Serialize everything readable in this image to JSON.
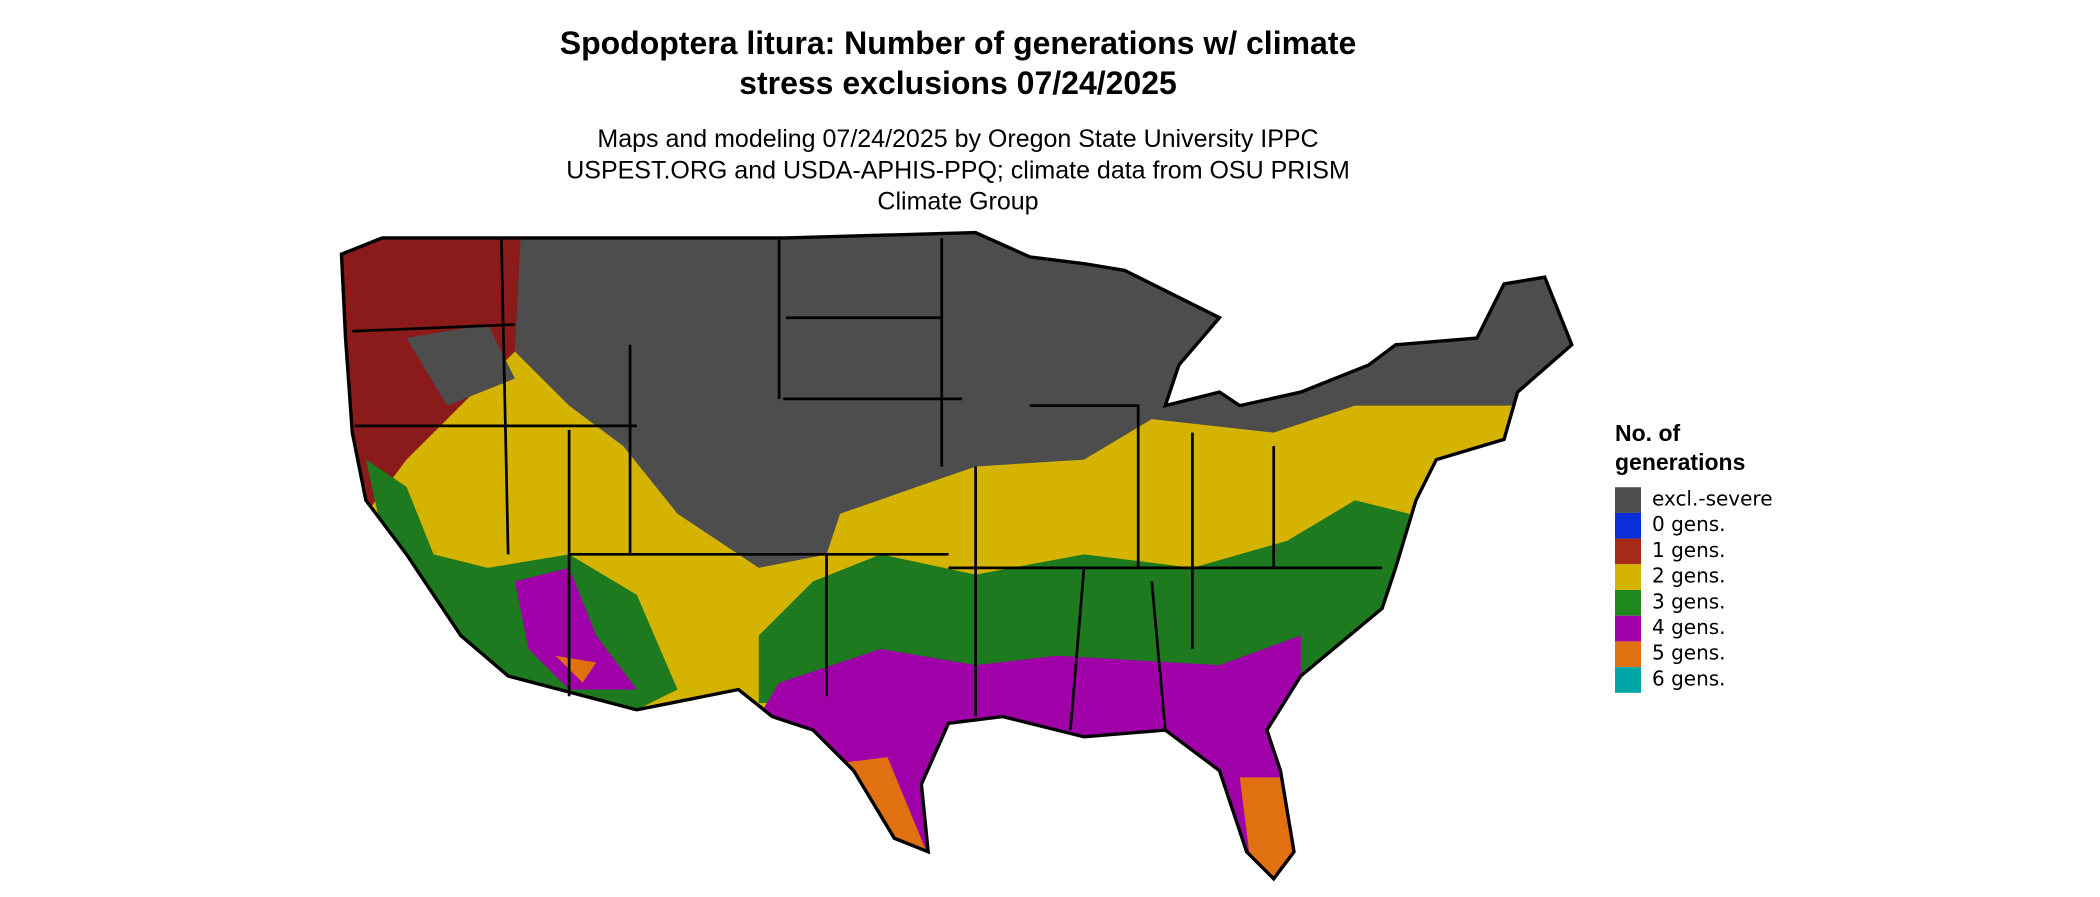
{
  "header": {
    "title": "Spodoptera litura: Number of generations w/ climate stress exclusions 07/24/2025",
    "subtitle": "Maps and modeling 07/24/2025 by Oregon State University IPPC USPEST.ORG and USDA-APHIS-PPQ; climate data from OSU PRISM Climate Group"
  },
  "legend": {
    "title": "No. of generations",
    "items": [
      {
        "label": "excl.-severe",
        "color": "#4d4d4d"
      },
      {
        "label": "0 gens.",
        "color": "#0a2fd8"
      },
      {
        "label": "1 gens.",
        "color": "#a52a1a"
      },
      {
        "label": "2 gens.",
        "color": "#d4b400"
      },
      {
        "label": "3 gens.",
        "color": "#1e8a1e"
      },
      {
        "label": "4 gens.",
        "color": "#a000a8"
      },
      {
        "label": "5 gens.",
        "color": "#e07010"
      },
      {
        "label": "6 gens.",
        "color": "#00a6a6"
      }
    ]
  }
}
